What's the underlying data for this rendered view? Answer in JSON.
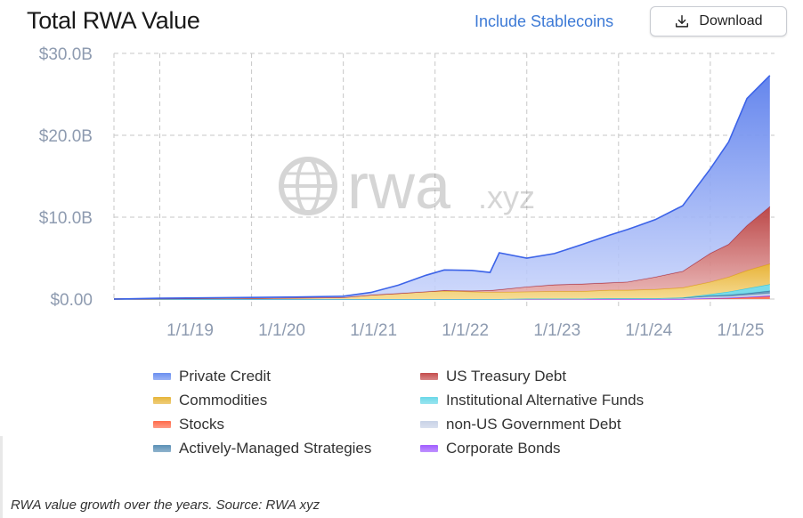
{
  "header": {
    "title": "Total RWA Value",
    "toggle_label": "Include Stablecoins",
    "download_label": "Download"
  },
  "caption": "RWA value growth over the years. Source: RWA xyz",
  "watermark": {
    "text_main": "rwa",
    "text_suffix": ".xyz"
  },
  "chart_data": {
    "type": "area",
    "stacked": true,
    "title": "Total RWA Value",
    "x_ticks": [
      "1/1/19",
      "1/1/20",
      "1/1/21",
      "1/1/22",
      "1/1/23",
      "1/1/24",
      "1/1/25"
    ],
    "y_ticks": [
      "$0.00",
      "$10.0B",
      "$20.0B",
      "$30.0B"
    ],
    "ylim": [
      0,
      30
    ],
    "y_unit": "billion USD",
    "grid": true,
    "legend_position": "bottom",
    "x": [
      2018.5,
      2019.0,
      2020.0,
      2020.5,
      2021.0,
      2021.3,
      2021.6,
      2021.9,
      2022.1,
      2022.4,
      2022.6,
      2022.7,
      2023.0,
      2023.3,
      2023.6,
      2023.9,
      2024.1,
      2024.4,
      2024.7,
      2025.0,
      2025.2,
      2025.4,
      2025.65
    ],
    "series": [
      {
        "name": "Stocks",
        "color": "#ff6b4a",
        "values": [
          0,
          0,
          0,
          0,
          0,
          0,
          0,
          0,
          0,
          0,
          0,
          0,
          0,
          0,
          0,
          0,
          0,
          0,
          0,
          0.05,
          0.1,
          0.2,
          0.3
        ]
      },
      {
        "name": "Corporate Bonds",
        "color": "#a05cff",
        "values": [
          0,
          0,
          0,
          0,
          0,
          0,
          0,
          0,
          0,
          0,
          0,
          0,
          0,
          0,
          0,
          0,
          0,
          0,
          0,
          0.05,
          0.05,
          0.05,
          0.1
        ]
      },
      {
        "name": "non-US Government Debt",
        "color": "#c8d2e6",
        "values": [
          0,
          0,
          0,
          0,
          0,
          0,
          0,
          0,
          0,
          0,
          0,
          0,
          0.05,
          0.05,
          0.05,
          0.1,
          0.1,
          0.1,
          0.15,
          0.2,
          0.2,
          0.25,
          0.3
        ]
      },
      {
        "name": "Actively-Managed Strategies",
        "color": "#5a8fb5",
        "values": [
          0,
          0,
          0,
          0,
          0,
          0,
          0,
          0,
          0,
          0,
          0,
          0,
          0,
          0,
          0,
          0,
          0,
          0,
          0,
          0.1,
          0.15,
          0.2,
          0.3
        ]
      },
      {
        "name": "Institutional Alternative Funds",
        "color": "#6ad8e8",
        "values": [
          0,
          0,
          0,
          0,
          0,
          0,
          0,
          0,
          0,
          0,
          0,
          0,
          0,
          0,
          0,
          0,
          0,
          0,
          0.05,
          0.2,
          0.4,
          0.6,
          0.8
        ]
      },
      {
        "name": "Commodities",
        "color": "#f2c14a",
        "values": [
          0,
          0.05,
          0.1,
          0.15,
          0.2,
          0.5,
          0.7,
          0.9,
          1.0,
          0.9,
          0.85,
          0.85,
          0.85,
          0.9,
          0.9,
          1.0,
          1.0,
          1.1,
          1.2,
          1.5,
          1.8,
          2.2,
          2.5
        ]
      },
      {
        "name": "US Treasury Debt",
        "color": "#d35454",
        "values": [
          0,
          0,
          0,
          0,
          0,
          0,
          0,
          0,
          0.05,
          0.1,
          0.2,
          0.3,
          0.6,
          0.8,
          0.9,
          0.9,
          1.0,
          1.5,
          2.0,
          3.5,
          4.0,
          5.5,
          7.0
        ]
      },
      {
        "name": "Private Credit",
        "color": "#6b8ff0",
        "values": [
          0,
          0.05,
          0.1,
          0.1,
          0.15,
          0.3,
          1.0,
          2.0,
          2.5,
          2.5,
          2.2,
          4.5,
          3.5,
          3.8,
          4.8,
          5.8,
          6.4,
          7.0,
          8.0,
          10.3,
          12.5,
          15.5,
          16.0
        ]
      }
    ],
    "legend": [
      {
        "name": "Private Credit",
        "color": "#6b8ff0"
      },
      {
        "name": "US Treasury Debt",
        "color": "#c44c4c"
      },
      {
        "name": "Commodities",
        "color": "#e6b53a"
      },
      {
        "name": "Institutional Alternative Funds",
        "color": "#6ad8e8"
      },
      {
        "name": "Stocks",
        "color": "#ff6b4a"
      },
      {
        "name": "non-US Government Debt",
        "color": "#c8d2e6"
      },
      {
        "name": "Actively-Managed Strategies",
        "color": "#5a8fb5"
      },
      {
        "name": "Corporate Bonds",
        "color": "#a05cff"
      }
    ]
  }
}
